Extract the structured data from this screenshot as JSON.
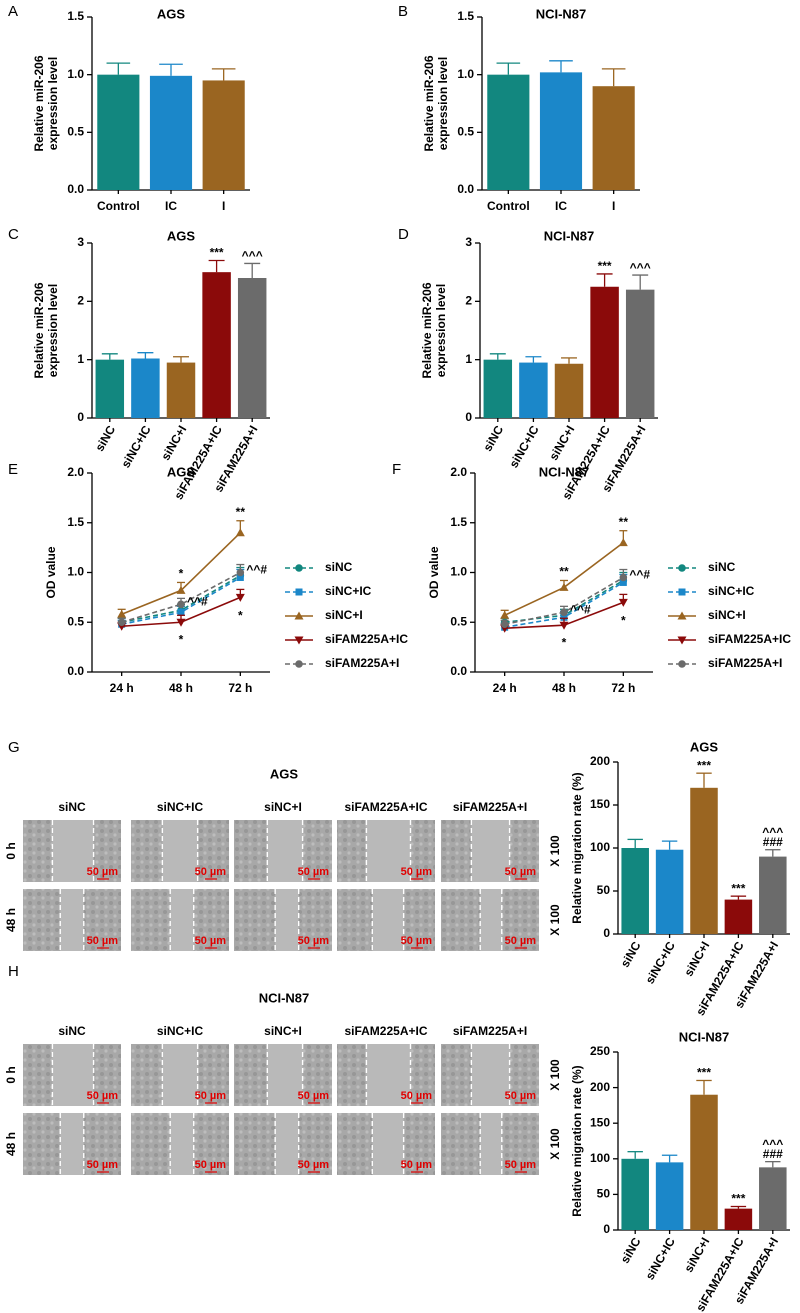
{
  "chart_data": [
    {
      "type": "bar",
      "panel_label": "A",
      "title": "AGS",
      "ylabel": [
        "Relative miR-206",
        "expression level"
      ],
      "categories": [
        "Control",
        "IC",
        "I"
      ],
      "values": [
        1.0,
        0.99,
        0.95
      ],
      "errors": [
        0.1,
        0.1,
        0.1
      ],
      "colors": [
        "#12877f",
        "#1b87c9",
        "#9a6521"
      ],
      "ylim": [
        0,
        1.5
      ],
      "yticks": [
        {
          "value": 0,
          "label": "0.0"
        },
        {
          "value": 0.5,
          "label": "0.5"
        },
        {
          "value": 1,
          "label": "1.0"
        },
        {
          "value": 1.5,
          "label": "1.5"
        }
      ],
      "rotate_labels": false
    },
    {
      "type": "bar",
      "panel_label": "B",
      "title": "NCI-N87",
      "ylabel": [
        "Relative miR-206",
        "expression level"
      ],
      "categories": [
        "Control",
        "IC",
        "I"
      ],
      "values": [
        1.0,
        1.02,
        0.9
      ],
      "errors": [
        0.1,
        0.1,
        0.15
      ],
      "colors": [
        "#12877f",
        "#1b87c9",
        "#9a6521"
      ],
      "ylim": [
        0,
        1.5
      ],
      "yticks": [
        {
          "value": 0,
          "label": "0.0"
        },
        {
          "value": 0.5,
          "label": "0.5"
        },
        {
          "value": 1,
          "label": "1.0"
        },
        {
          "value": 1.5,
          "label": "1.5"
        }
      ],
      "rotate_labels": false
    },
    {
      "type": "bar",
      "panel_label": "C",
      "title": "AGS",
      "ylabel": [
        "Relative miR-206",
        "expression level"
      ],
      "categories": [
        "siNC",
        "siNC+IC",
        "siNC+I",
        "siFAM225A+IC",
        "siFAM225A+I"
      ],
      "values": [
        1.0,
        1.02,
        0.95,
        2.5,
        2.4
      ],
      "errors": [
        0.1,
        0.1,
        0.1,
        0.2,
        0.25
      ],
      "colors": [
        "#12877f",
        "#1b87c9",
        "#9a6521",
        "#8b0a0a",
        "#6b6b6b"
      ],
      "ylim": [
        0,
        3
      ],
      "yticks": [
        0,
        1,
        2,
        3
      ],
      "rotate_labels": true,
      "significance": [
        null,
        null,
        null,
        [
          "***"
        ],
        [
          "^^^"
        ]
      ]
    },
    {
      "type": "bar",
      "panel_label": "D",
      "title": "NCI-N87",
      "ylabel": [
        "Relative miR-206",
        "expression level"
      ],
      "categories": [
        "siNC",
        "siNC+IC",
        "siNC+I",
        "siFAM225A+IC",
        "siFAM225A+I"
      ],
      "values": [
        1.0,
        0.95,
        0.93,
        2.25,
        2.2
      ],
      "errors": [
        0.1,
        0.1,
        0.1,
        0.22,
        0.25
      ],
      "colors": [
        "#12877f",
        "#1b87c9",
        "#9a6521",
        "#8b0a0a",
        "#6b6b6b"
      ],
      "ylim": [
        0,
        3
      ],
      "yticks": [
        0,
        1,
        2,
        3
      ],
      "rotate_labels": true,
      "significance": [
        null,
        null,
        null,
        [
          "***"
        ],
        [
          "^^^"
        ]
      ]
    },
    {
      "type": "line",
      "panel_label": "E",
      "title": "AGS",
      "ylabel": "OD value",
      "categories": [
        "24 h",
        "48 h",
        "72 h"
      ],
      "ylim": [
        0,
        2
      ],
      "yticks": [
        {
          "value": 0,
          "label": "0.0"
        },
        {
          "value": 0.5,
          "label": "0.5"
        },
        {
          "value": 1,
          "label": "1.0"
        },
        {
          "value": 1.5,
          "label": "1.5"
        },
        {
          "value": 2,
          "label": "2.0"
        }
      ],
      "legend": "right",
      "series": [
        {
          "name": "siNC",
          "color": "#12877f",
          "line_style": "dashed",
          "marker": "circle",
          "values": [
            0.5,
            0.62,
            0.97
          ],
          "errors": [
            0.04,
            0.06,
            0.08
          ]
        },
        {
          "name": "siNC+IC",
          "color": "#1b87c9",
          "line_style": "dashed",
          "marker": "square",
          "values": [
            0.48,
            0.6,
            0.95
          ],
          "errors": [
            0.04,
            0.06,
            0.08
          ]
        },
        {
          "name": "siNC+I",
          "color": "#9a6521",
          "line_style": "solid",
          "marker": "triangle",
          "values": [
            0.58,
            0.82,
            1.4
          ],
          "errors": [
            0.05,
            0.08,
            0.12
          ],
          "point_labels": [
            null,
            "*",
            "**"
          ],
          "label_position": "above"
        },
        {
          "name": "siFAM225A+IC",
          "color": "#8b0a0a",
          "line_style": "solid",
          "marker": "triangle-down",
          "values": [
            0.46,
            0.5,
            0.75
          ],
          "errors": [
            0.04,
            0.07,
            0.08
          ],
          "point_labels": [
            null,
            "*",
            "*"
          ],
          "label_position": "below"
        },
        {
          "name": "siFAM225A+I",
          "color": "#6b6b6b",
          "line_style": "dashed",
          "marker": "circle",
          "values": [
            0.5,
            0.68,
            1.0
          ],
          "errors": [
            0.04,
            0.06,
            0.08
          ],
          "point_labels": [
            null,
            "^^#",
            "^^#"
          ],
          "label_position": "right"
        }
      ]
    },
    {
      "type": "line",
      "panel_label": "F",
      "title": "NCI-N87",
      "ylabel": "OD value",
      "categories": [
        "24 h",
        "48 h",
        "72 h"
      ],
      "ylim": [
        0,
        2
      ],
      "yticks": [
        {
          "value": 0,
          "label": "0.0"
        },
        {
          "value": 0.5,
          "label": "0.5"
        },
        {
          "value": 1,
          "label": "1.0"
        },
        {
          "value": 1.5,
          "label": "1.5"
        },
        {
          "value": 2,
          "label": "2.0"
        }
      ],
      "legend": "right",
      "series": [
        {
          "name": "siNC",
          "color": "#12877f",
          "line_style": "dashed",
          "marker": "circle",
          "values": [
            0.5,
            0.57,
            0.92
          ],
          "errors": [
            0.04,
            0.06,
            0.08
          ]
        },
        {
          "name": "siNC+IC",
          "color": "#1b87c9",
          "line_style": "dashed",
          "marker": "square",
          "values": [
            0.45,
            0.55,
            0.9
          ],
          "errors": [
            0.04,
            0.06,
            0.08
          ]
        },
        {
          "name": "siNC+I",
          "color": "#9a6521",
          "line_style": "solid",
          "marker": "triangle",
          "values": [
            0.57,
            0.85,
            1.3
          ],
          "errors": [
            0.05,
            0.07,
            0.12
          ],
          "point_labels": [
            null,
            "**",
            "**"
          ],
          "label_position": "above"
        },
        {
          "name": "siFAM225A+IC",
          "color": "#8b0a0a",
          "line_style": "solid",
          "marker": "triangle-down",
          "values": [
            0.44,
            0.47,
            0.7
          ],
          "errors": [
            0.04,
            0.07,
            0.08
          ],
          "point_labels": [
            null,
            "*",
            "*"
          ],
          "label_position": "below"
        },
        {
          "name": "siFAM225A+I",
          "color": "#6b6b6b",
          "line_style": "dashed",
          "marker": "circle",
          "values": [
            0.48,
            0.6,
            0.95
          ],
          "errors": [
            0.04,
            0.06,
            0.08
          ],
          "point_labels": [
            null,
            "^^#",
            "^^#"
          ],
          "label_position": "right"
        }
      ]
    },
    {
      "type": "bar",
      "title": "AGS",
      "ylabel": "Relative migration rate (%)",
      "categories": [
        "siNC",
        "siNC+IC",
        "siNC+I",
        "siFAM225A+IC",
        "siFAM225A+I"
      ],
      "values": [
        100,
        98,
        170,
        40,
        90
      ],
      "errors": [
        10,
        10,
        17,
        4,
        8
      ],
      "colors": [
        "#12877f",
        "#1b87c9",
        "#9a6521",
        "#8b0a0a",
        "#6b6b6b"
      ],
      "ylim": [
        0,
        200
      ],
      "yticks": [
        0,
        50,
        100,
        150,
        200
      ],
      "rotate_labels": true,
      "significance": [
        null,
        null,
        [
          "***"
        ],
        [
          "***"
        ],
        [
          "^^^",
          "###"
        ]
      ]
    },
    {
      "type": "bar",
      "title": "NCI-N87",
      "ylabel": "Relative migration rate (%)",
      "categories": [
        "siNC",
        "siNC+IC",
        "siNC+I",
        "siFAM225A+IC",
        "siFAM225A+I"
      ],
      "values": [
        100,
        95,
        190,
        30,
        88
      ],
      "errors": [
        10,
        10,
        20,
        3,
        8
      ],
      "colors": [
        "#12877f",
        "#1b87c9",
        "#9a6521",
        "#8b0a0a",
        "#6b6b6b"
      ],
      "ylim": [
        0,
        250
      ],
      "yticks": [
        0,
        50,
        100,
        150,
        200,
        250
      ],
      "rotate_labels": true,
      "significance": [
        null,
        null,
        [
          "***"
        ],
        [
          "***"
        ],
        [
          "^^^",
          "###"
        ]
      ]
    }
  ],
  "wound_assays": [
    {
      "panel_label": "G",
      "title": "AGS",
      "columns": [
        "siNC",
        "siNC+IC",
        "siNC+I",
        "siFAM225A+IC",
        "siFAM225A+I"
      ],
      "rows": [
        "0 h",
        "48 h"
      ],
      "scale_bar": "50 µm",
      "magnification": "X 100"
    },
    {
      "panel_label": "H",
      "title": "NCI-N87",
      "columns": [
        "siNC",
        "siNC+IC",
        "siNC+I",
        "siFAM225A+IC",
        "siFAM225A+I"
      ],
      "rows": [
        "0 h",
        "48 h"
      ],
      "scale_bar": "50 µm",
      "magnification": "X 100"
    }
  ]
}
